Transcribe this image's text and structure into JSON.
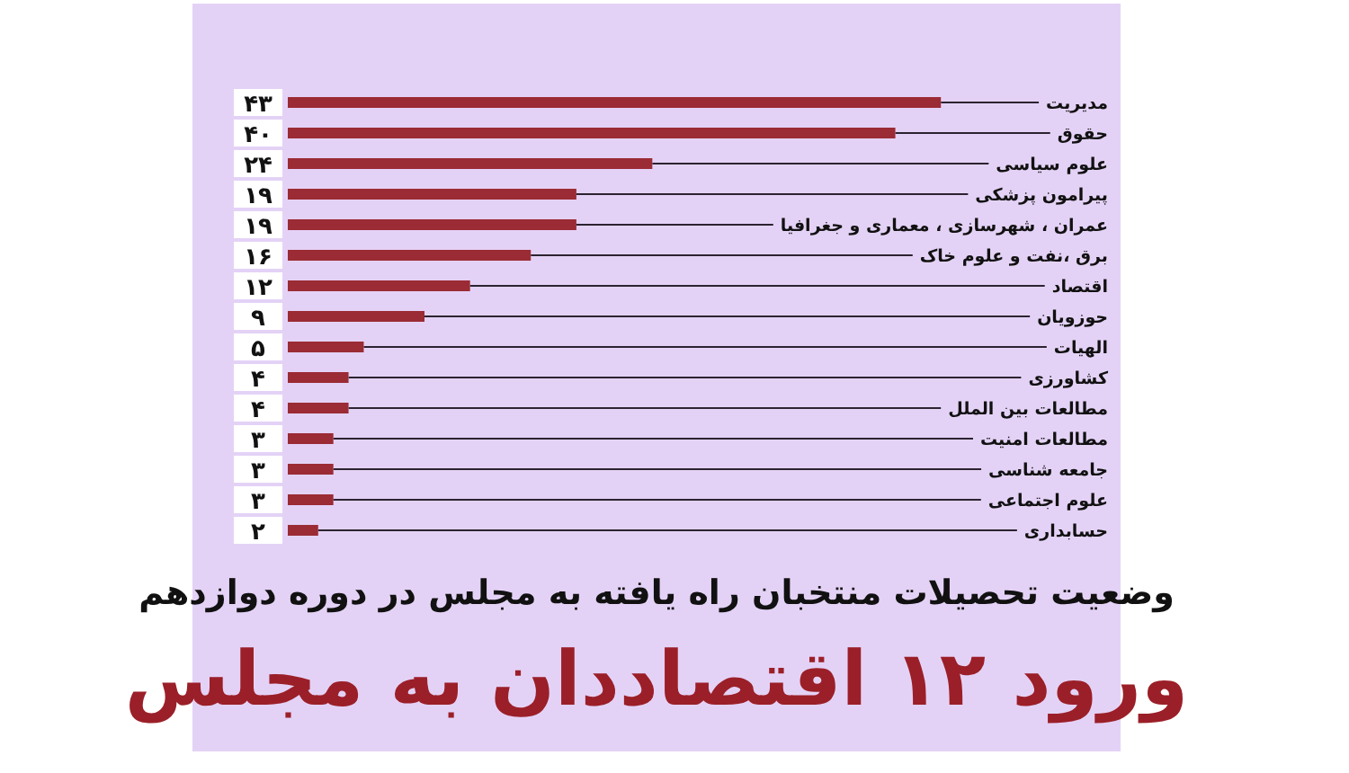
{
  "chart_data": {
    "type": "bar",
    "orientation": "horizontal",
    "title": "ورود ۱۲ اقتصاددان به مجلس",
    "subtitle": "وضعیت تحصیلات منتخبان راه یافته به مجلس در دوره دوازدهم",
    "categories": [
      "مدیریت",
      "حقوق",
      "علوم سیاسی",
      "پیرامون پزشکی",
      "عمران ، شهرسازی ، معماری و جغرافیا",
      "برق ،نفت و علوم خاک",
      "اقتصاد",
      "حوزویان",
      "الهیات",
      "کشاورزی",
      "مطالعات بین الملل",
      "مطالعات امنیت",
      "جامعه شناسی",
      "علوم اجتماعی",
      "حسابداری"
    ],
    "values": [
      43,
      40,
      24,
      19,
      19,
      16,
      12,
      9,
      5,
      4,
      4,
      3,
      3,
      3,
      2
    ],
    "value_labels": [
      "۴۳",
      "۴۰",
      "۲۴",
      "۱۹",
      "۱۹",
      "۱۶",
      "۱۲",
      "۹",
      "۵",
      "۴",
      "۴",
      "۳",
      "۳",
      "۳",
      "۲"
    ],
    "color": "#9b2b34",
    "xlim": [
      0,
      45
    ]
  }
}
